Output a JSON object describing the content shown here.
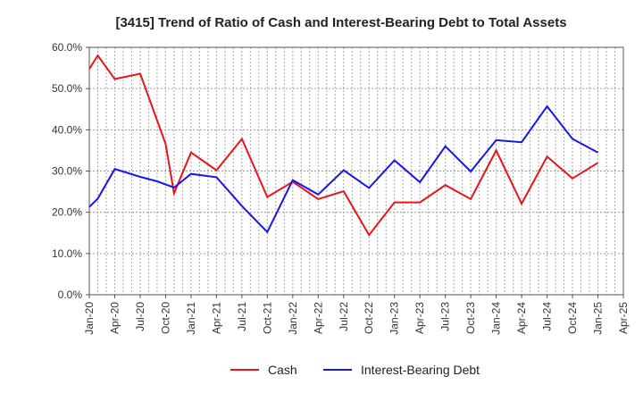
{
  "chart_data": {
    "type": "line",
    "title": "[3415]  Trend of Ratio of Cash and Interest-Bearing Debt to Total Assets",
    "xlabel": "",
    "ylabel": "",
    "ylim": [
      0,
      60
    ],
    "yticks": [
      "0.0%",
      "10.0%",
      "20.0%",
      "30.0%",
      "40.0%",
      "50.0%",
      "60.0%"
    ],
    "xticks": [
      "Jan-20",
      "Apr-20",
      "Jul-20",
      "Oct-20",
      "Jan-21",
      "Apr-21",
      "Jul-21",
      "Oct-21",
      "Jan-22",
      "Apr-22",
      "Jul-22",
      "Oct-22",
      "Jan-23",
      "Apr-23",
      "Jul-23",
      "Oct-23",
      "Jan-24",
      "Apr-24",
      "Jul-24",
      "Oct-24",
      "Jan-25",
      "Apr-25"
    ],
    "x": [
      "Jan-20",
      "Feb-20",
      "Apr-20",
      "Jul-20",
      "Sep-20",
      "Oct-20",
      "Nov-20",
      "Jan-21",
      "Apr-21",
      "Jul-21",
      "Oct-21",
      "Jan-22",
      "Apr-22",
      "Jul-22",
      "Oct-22",
      "Jan-23",
      "Apr-23",
      "Jul-23",
      "Oct-23",
      "Jan-24",
      "Apr-24",
      "Jul-24",
      "Oct-24",
      "Jan-25"
    ],
    "series": [
      {
        "name": "Cash",
        "color": "#e8141b",
        "points": [
          [
            "Jan-20",
            54.8
          ],
          [
            "Feb-20",
            58.0
          ],
          [
            "Apr-20",
            52.3
          ],
          [
            "Jul-20",
            53.6
          ],
          [
            "Oct-20",
            36.6
          ],
          [
            "Nov-20",
            24.6
          ],
          [
            "Jan-21",
            34.5
          ],
          [
            "Apr-21",
            30.2
          ],
          [
            "Jul-21",
            37.8
          ],
          [
            "Oct-21",
            23.7
          ],
          [
            "Jan-22",
            27.4
          ],
          [
            "Apr-22",
            23.2
          ],
          [
            "Jul-22",
            25.1
          ],
          [
            "Oct-22",
            14.5
          ],
          [
            "Jan-23",
            22.4
          ],
          [
            "Apr-23",
            22.4
          ],
          [
            "Jul-23",
            26.6
          ],
          [
            "Oct-23",
            23.2
          ],
          [
            "Jan-24",
            35.0
          ],
          [
            "Apr-24",
            22.1
          ],
          [
            "Jul-24",
            33.5
          ],
          [
            "Oct-24",
            28.2
          ],
          [
            "Jan-25",
            32.0
          ]
        ]
      },
      {
        "name": "Interest-Bearing Debt",
        "color": "#1717e6",
        "points": [
          [
            "Jan-20",
            21.3
          ],
          [
            "Feb-20",
            23.3
          ],
          [
            "Apr-20",
            30.5
          ],
          [
            "Jul-20",
            28.6
          ],
          [
            "Sep-20",
            27.5
          ],
          [
            "Nov-20",
            26.0
          ],
          [
            "Jan-21",
            29.3
          ],
          [
            "Apr-21",
            28.5
          ],
          [
            "Jul-21",
            21.5
          ],
          [
            "Oct-21",
            15.2
          ],
          [
            "Jan-22",
            27.8
          ],
          [
            "Apr-22",
            24.3
          ],
          [
            "Jul-22",
            30.2
          ],
          [
            "Oct-22",
            25.9
          ],
          [
            "Jan-23",
            32.6
          ],
          [
            "Apr-23",
            27.3
          ],
          [
            "Jul-23",
            36.0
          ],
          [
            "Oct-23",
            29.9
          ],
          [
            "Jan-24",
            37.5
          ],
          [
            "Apr-24",
            37.0
          ],
          [
            "Jul-24",
            45.7
          ],
          [
            "Oct-24",
            37.8
          ],
          [
            "Jan-25",
            34.5
          ]
        ]
      }
    ],
    "grid": true,
    "legend": "bottom-center"
  }
}
